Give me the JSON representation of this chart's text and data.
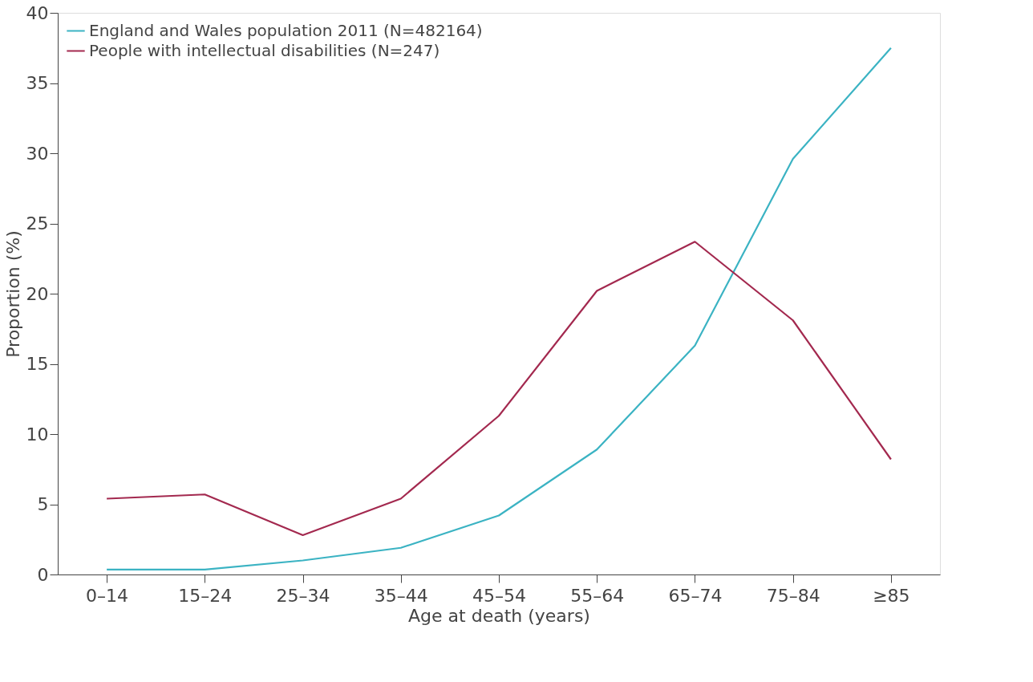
{
  "chart_data": {
    "type": "line",
    "xlabel": "Age at death (years)",
    "ylabel": "Proportion (%)",
    "categories": [
      "0–14",
      "15–24",
      "25–34",
      "35–44",
      "45–54",
      "55–64",
      "65–74",
      "75–84",
      "≥85"
    ],
    "series": [
      {
        "name": "England and Wales population 2011 (N=482164)",
        "color": "#3bb3c3",
        "values": [
          0.35,
          0.35,
          1.0,
          1.9,
          4.2,
          8.9,
          16.3,
          29.6,
          37.5
        ]
      },
      {
        "name": "People with intellectual disabilities (N=247)",
        "color": "#a3294f",
        "values": [
          5.4,
          5.7,
          2.8,
          5.4,
          11.3,
          20.2,
          23.7,
          18.1,
          8.2
        ]
      }
    ],
    "ylim": [
      0,
      40
    ],
    "yticks": [
      0,
      5,
      10,
      15,
      20,
      25,
      30,
      35,
      40
    ],
    "grid": false,
    "legend": "top left",
    "marker": "none",
    "line_style": "solid"
  }
}
